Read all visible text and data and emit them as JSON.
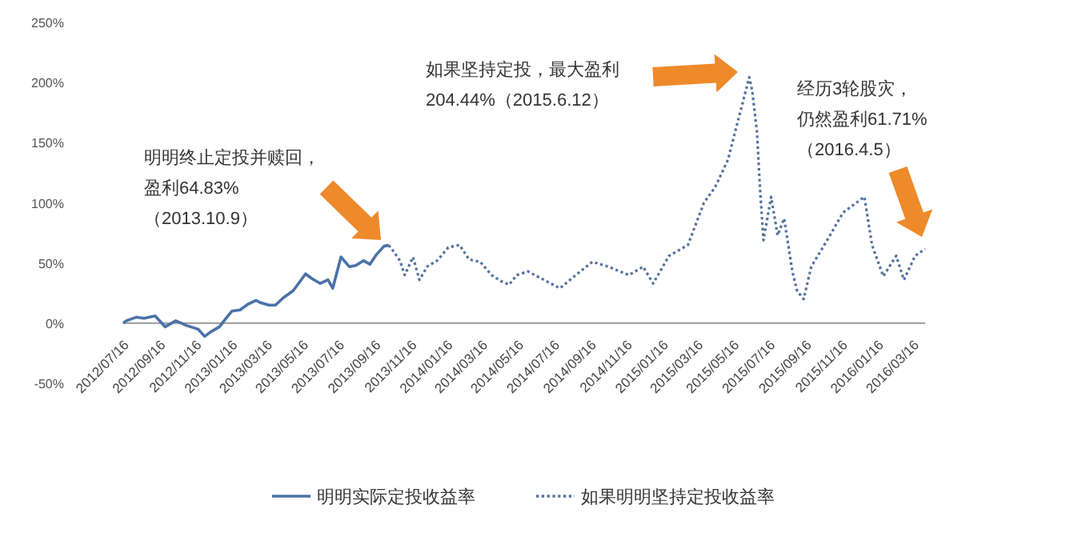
{
  "chart_data": {
    "type": "line",
    "xlim": [
      "2012-07-16",
      "2016-04-05"
    ],
    "xticks": [
      {
        "value": "2012-07-16",
        "label": "2012/07/16"
      },
      {
        "value": "2012-09-16",
        "label": "2012/09/16"
      },
      {
        "value": "2012-11-16",
        "label": "2012/11/16"
      },
      {
        "value": "2013-01-16",
        "label": "2013/01/16"
      },
      {
        "value": "2013-03-16",
        "label": "2013/03/16"
      },
      {
        "value": "2013-05-16",
        "label": "2013/05/16"
      },
      {
        "value": "2013-07-16",
        "label": "2013/07/16"
      },
      {
        "value": "2013-09-16",
        "label": "2013/09/16"
      },
      {
        "value": "2013-11-16",
        "label": "2013/11/16"
      },
      {
        "value": "2014-01-16",
        "label": "2014/01/16"
      },
      {
        "value": "2014-03-16",
        "label": "2014/03/16"
      },
      {
        "value": "2014-05-16",
        "label": "2014/05/16"
      },
      {
        "value": "2014-07-16",
        "label": "2014/07/16"
      },
      {
        "value": "2014-09-16",
        "label": "2014/09/16"
      },
      {
        "value": "2014-11-16",
        "label": "2014/11/16"
      },
      {
        "value": "2015-01-16",
        "label": "2015/01/16"
      },
      {
        "value": "2015-03-16",
        "label": "2015/03/16"
      },
      {
        "value": "2015-05-16",
        "label": "2015/05/16"
      },
      {
        "value": "2015-07-16",
        "label": "2015/07/16"
      },
      {
        "value": "2015-09-16",
        "label": "2015/09/16"
      },
      {
        "value": "2015-11-16",
        "label": "2015/11/16"
      },
      {
        "value": "2016-01-16",
        "label": "2016/01/16"
      },
      {
        "value": "2016-03-16",
        "label": "2016/03/16"
      }
    ],
    "ylim": [
      -50,
      250
    ],
    "yticks": [
      {
        "value": -50,
        "label": "-50%"
      },
      {
        "value": 0,
        "label": "0%"
      },
      {
        "value": 50,
        "label": "50%"
      },
      {
        "value": 100,
        "label": "100%"
      },
      {
        "value": 150,
        "label": "150%"
      },
      {
        "value": 200,
        "label": "200%"
      },
      {
        "value": 250,
        "label": "250%"
      }
    ],
    "grid": false,
    "legend": "bottom",
    "marker": "none",
    "series": [
      {
        "name": "明明实际定投收益率",
        "color": "#4a72a8",
        "line_style": "solid",
        "x": [
          "2012-07-16",
          "2012-07-21",
          "2012-08-07",
          "2012-08-20",
          "2012-09-08",
          "2012-09-25",
          "2012-10-13",
          "2012-11-01",
          "2012-11-20",
          "2012-12-01",
          "2012-12-12",
          "2012-12-26",
          "2013-01-06",
          "2013-01-16",
          "2013-01-30",
          "2013-02-13",
          "2013-02-26",
          "2013-03-06",
          "2013-03-20",
          "2013-03-31",
          "2013-04-13",
          "2013-04-30",
          "2013-05-21",
          "2013-06-01",
          "2013-06-15",
          "2013-06-28",
          "2013-07-06",
          "2013-07-20",
          "2013-08-03",
          "2013-08-14",
          "2013-08-27",
          "2013-09-07",
          "2013-09-18",
          "2013-10-01",
          "2013-10-09"
        ],
        "values": [
          0,
          2,
          5,
          4,
          6,
          -3,
          2,
          -2,
          -5,
          -11,
          -7,
          -3,
          4,
          10,
          11,
          16,
          19,
          17,
          15,
          15,
          21,
          27,
          41,
          37,
          33,
          36,
          29,
          55,
          47,
          48,
          52,
          49,
          57,
          64,
          64.83
        ]
      },
      {
        "name": "如果明明坚持定投收益率",
        "color": "#52709a",
        "line_style": "dotted",
        "x": [
          "2013-10-09",
          "2013-10-15",
          "2013-10-28",
          "2013-11-05",
          "2013-11-19",
          "2013-11-30",
          "2013-12-13",
          "2013-12-30",
          "2014-01-18",
          "2014-02-06",
          "2014-02-22",
          "2014-03-13",
          "2014-04-01",
          "2014-04-17",
          "2014-05-01",
          "2014-05-14",
          "2014-06-02",
          "2014-07-26",
          "2014-08-22",
          "2014-09-19",
          "2014-10-16",
          "2014-11-20",
          "2014-12-14",
          "2014-12-31",
          "2015-01-27",
          "2015-02-28",
          "2015-03-27",
          "2015-04-15",
          "2015-05-07",
          "2015-05-21",
          "2015-06-12",
          "2015-06-17",
          "2015-06-25",
          "2015-06-30",
          "2015-07-06",
          "2015-07-19",
          "2015-07-30",
          "2015-08-10",
          "2015-08-24",
          "2015-09-01",
          "2015-09-12",
          "2015-09-25",
          "2015-10-22",
          "2015-11-18",
          "2015-12-24",
          "2016-01-06",
          "2016-01-25",
          "2016-02-16",
          "2016-02-29",
          "2016-03-19",
          "2016-04-05"
        ],
        "values": [
          64.83,
          61,
          52,
          40,
          55,
          36,
          47,
          52,
          63,
          65,
          53,
          51,
          40,
          35,
          32,
          40,
          43,
          29,
          40,
          51,
          47,
          40,
          47,
          33,
          56,
          65,
          100,
          113,
          136,
          163,
          204.44,
          193,
          159,
          113,
          69,
          105,
          73,
          87,
          43,
          27,
          20,
          47,
          69,
          92,
          105,
          65,
          39,
          56,
          36,
          56,
          61.71
        ]
      }
    ],
    "annotations": [
      "明明终止定投并赎回，盈利64.83%（2013.10.9）",
      "如果坚持定投，最大盈利204.44%（2015.6.12）",
      "经历3轮股灾，仍然盈利61.71%（2016.4.5）"
    ]
  }
}
